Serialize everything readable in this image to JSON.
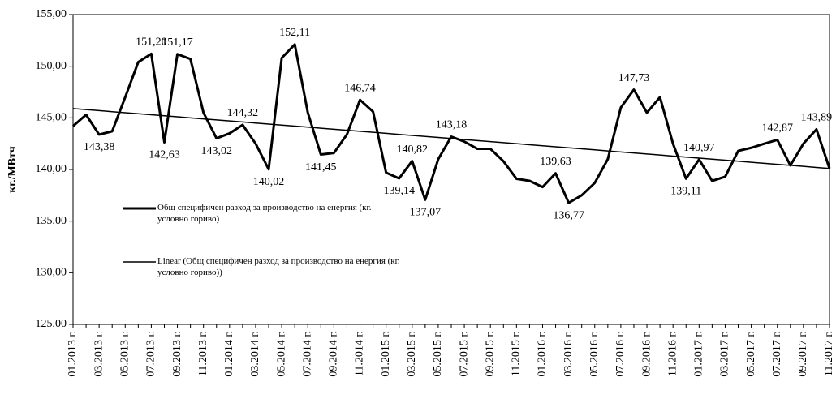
{
  "chart_data": {
    "type": "line",
    "y_label": "кг./МВтч",
    "categories": [
      "01.2013 г.",
      null,
      "03.2013 г.",
      null,
      "05.2013 г.",
      null,
      "07.2013 г.",
      null,
      "09.2013 г.",
      null,
      "11.2013 г.",
      null,
      "01.2014 г.",
      null,
      "03.2014 г.",
      null,
      "05.2014 г.",
      null,
      "07.2014 г.",
      null,
      "09.2014 г.",
      null,
      "11.2014 г.",
      null,
      "01.2015 г.",
      null,
      "03.2015 г.",
      null,
      "05.2015 г.",
      null,
      "07.2015 г.",
      null,
      "09.2015 г.",
      null,
      "11.2015 г.",
      null,
      "01.2016 г.",
      null,
      "03.2016 г.",
      null,
      "05.2016 г.",
      null,
      "07.2016 г.",
      null,
      "09.2016 г.",
      null,
      "11.2016 г.",
      null,
      "01.2017 г.",
      null,
      "03.2017 г.",
      null,
      "05.2017 г.",
      null,
      "07.2017 г.",
      null,
      "09.2017 г.",
      null,
      "11.2017 г."
    ],
    "series": [
      {
        "name": "Общ специфичен разход за производство на енергия (кг. условно гориво)",
        "color": "#000000",
        "width": 3,
        "values": [
          144.2,
          145.3,
          143.38,
          143.7,
          147.0,
          150.4,
          151.2,
          142.63,
          151.17,
          150.7,
          145.5,
          143.02,
          143.5,
          144.32,
          142.5,
          140.02,
          150.8,
          152.11,
          145.5,
          141.45,
          141.6,
          143.4,
          146.74,
          145.6,
          139.7,
          139.14,
          140.82,
          137.07,
          141.0,
          143.18,
          142.7,
          142.0,
          142.0,
          140.8,
          139.1,
          138.9,
          138.3,
          139.63,
          136.77,
          137.5,
          138.7,
          141.0,
          146.0,
          147.73,
          145.5,
          147.0,
          142.5,
          139.11,
          140.97,
          138.9,
          139.3,
          141.8,
          142.1,
          142.5,
          142.87,
          140.4,
          142.5,
          143.89,
          140.1
        ],
        "value_labels": [
          null,
          null,
          "143,38",
          null,
          null,
          null,
          "151,20",
          "142,63",
          "151,17",
          null,
          null,
          "143,02",
          null,
          "144,32",
          null,
          "140,02",
          null,
          "152,11",
          null,
          "141,45",
          null,
          null,
          "146,74",
          null,
          null,
          "139,14",
          "140,82",
          "137,07",
          null,
          "143,18",
          null,
          null,
          null,
          null,
          null,
          null,
          null,
          "139,63",
          "136,77",
          null,
          null,
          null,
          null,
          "147,73",
          null,
          null,
          null,
          "139,11",
          "140,97",
          null,
          null,
          null,
          null,
          null,
          "142,87",
          null,
          null,
          "143,89",
          null
        ]
      },
      {
        "name": "Linear (Общ специфичен разход за производство на енергия (кг. условно гориво))",
        "color": "#000000",
        "width": 1.5,
        "values": [
          145.9,
          145.8,
          145.7,
          145.6,
          145.5,
          145.4,
          145.3,
          145.2,
          145.1,
          145.0,
          144.9,
          144.8,
          144.7,
          144.6,
          144.5,
          144.4,
          144.3,
          144.2,
          144.1,
          144.0,
          143.9,
          143.8,
          143.7,
          143.6,
          143.5,
          143.4,
          143.3,
          143.2,
          143.1,
          143.0,
          142.9,
          142.8,
          142.7,
          142.6,
          142.5,
          142.4,
          142.3,
          142.2,
          142.1,
          142.0,
          141.9,
          141.8,
          141.7,
          141.6,
          141.5,
          141.4,
          141.3,
          141.2,
          141.1,
          141.0,
          140.9,
          140.8,
          140.7,
          140.6,
          140.5,
          140.4,
          140.3,
          140.2,
          140.1
        ]
      }
    ],
    "ylim": [
      125,
      155
    ],
    "yticks": [
      {
        "value": 125,
        "label": "125,00"
      },
      {
        "value": 130,
        "label": "130,00"
      },
      {
        "value": 135,
        "label": "135,00"
      },
      {
        "value": 140,
        "label": "140,00"
      },
      {
        "value": 145,
        "label": "145,00"
      },
      {
        "value": 150,
        "label": "150,00"
      },
      {
        "value": 155,
        "label": "155,00"
      }
    ],
    "legend": "lower left"
  }
}
